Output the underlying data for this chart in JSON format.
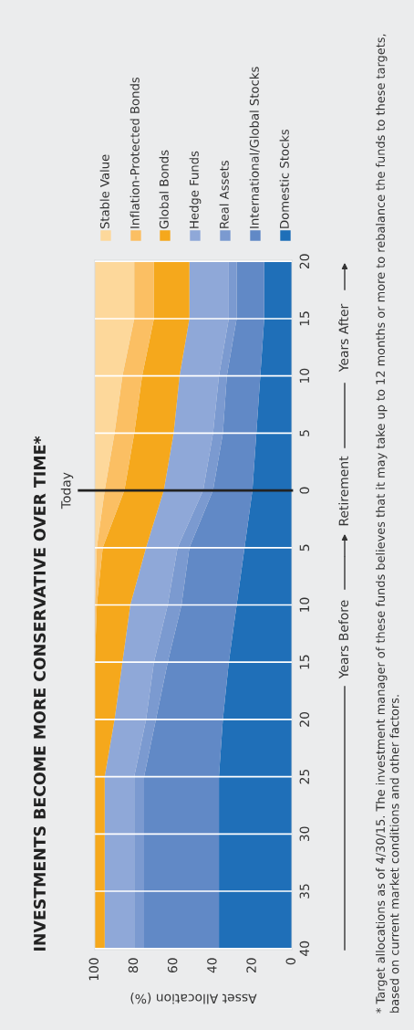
{
  "chart_data": {
    "type": "area",
    "stacked": true,
    "orientation": "horizontal",
    "title": "INVESTMENTS BECOME MORE CONSERVATIVE OVER TIME*",
    "xlabel": "Asset Allocation (%)",
    "categories": [
      "20",
      "15",
      "10",
      "5",
      "0",
      "5",
      "10",
      "15",
      "20",
      "25",
      "30",
      "35",
      "40"
    ],
    "series": [
      {
        "name": "Domestic Stocks",
        "color": "#1f6fb8",
        "values": [
          14,
          14,
          16,
          18,
          20,
          24,
          28,
          32,
          35,
          37,
          37,
          37,
          37
        ]
      },
      {
        "name": "International/Global Stocks",
        "color": "#6189c6",
        "values": [
          14,
          14,
          17,
          17,
          20,
          28,
          28,
          31,
          34,
          38,
          38,
          38,
          38
        ]
      },
      {
        "name": "Real Assets",
        "color": "#7b9ad0",
        "values": [
          4,
          4,
          4,
          5,
          5,
          6,
          7,
          7,
          5,
          5,
          5,
          5,
          5
        ]
      },
      {
        "name": "Hedge Funds",
        "color": "#8fa8d8",
        "values": [
          20,
          20,
          20,
          20,
          20,
          16,
          19,
          16,
          16,
          15,
          15,
          15,
          15
        ]
      },
      {
        "name": "Global Bonds",
        "color": "#f5a81c",
        "values": [
          18,
          18,
          19,
          20,
          20,
          22,
          17,
          14,
          10,
          5,
          5,
          5,
          5
        ]
      },
      {
        "name": "Inflation-Protected Bonds",
        "color": "#fbbf63",
        "values": [
          10,
          10,
          10,
          10,
          10,
          3,
          1,
          0,
          0,
          0,
          0,
          0,
          0
        ]
      },
      {
        "name": "Stable Value",
        "color": "#fdd89b",
        "values": [
          20,
          20,
          14,
          10,
          5,
          1,
          0,
          0,
          0,
          0,
          0,
          0,
          0
        ]
      }
    ],
    "xlim": [
      100,
      0
    ],
    "xticks": [
      100,
      80,
      60,
      40,
      20,
      0
    ],
    "grid": "y",
    "legend": "top",
    "ref_lines": [
      {
        "axis": "y",
        "value": "0",
        "label": "Today",
        "color": "#222222"
      }
    ],
    "annotations": [
      "Years Before",
      "Retirement",
      "Years After",
      "* Target allocations as of 4/30/15. The investment manager of these funds believes that it may take up to 12 months or more to rebalance the funds to these targets, based on current market conditions and other factors."
    ]
  }
}
